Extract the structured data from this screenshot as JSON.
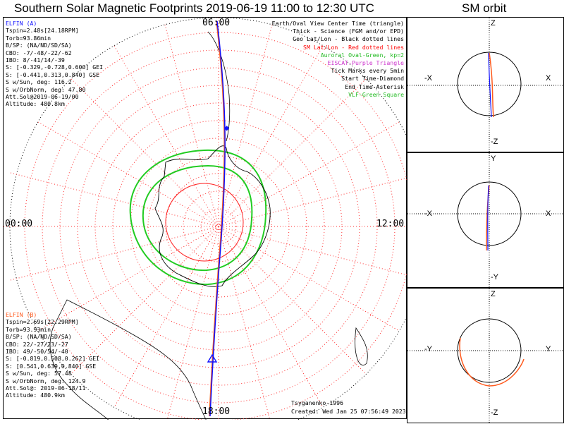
{
  "header": {
    "title": "Southern Solar Magnetic Footprints 2019-06-19 11:00 to 12:30 UTC",
    "orbit_title": "SM orbit"
  },
  "map": {
    "clock_labels": {
      "top": "06:00",
      "left": "00:00",
      "right": "12:00",
      "bottom": "18:00"
    },
    "colors": {
      "sm_grid": "#ff3030",
      "geo_grid": "#000000",
      "auroral_oval": "#22cc22",
      "track_a": "#1010ff",
      "track_b": "#ff5a1e"
    }
  },
  "elfin_a": {
    "title": "ELFIN (A)",
    "lines": [
      "Tspin=2.48s[24.18RPM]",
      "Torb=93.86min",
      "B/SP: (NA/ND/SD/SA)",
      "CBO: -7/-48/-22/-62",
      "IBO: 8/-41/14/-39",
      "S: [-0.329,-0.728,0.600] GEI",
      "S: [-0.441,0.313,0.840] GSE",
      "S w/Sun, deg: 116.2",
      "S w/OrbNorm, deg: 47.80",
      "Att.Sol@2019-06-19/00",
      "Altitude: 480.8km"
    ]
  },
  "elfin_b": {
    "title": "ELFIN (B)",
    "lines": [
      "Tspin=2.69s[22.29RPM]",
      "Torb=93.93min",
      "B/SP: (NA/ND/SD/SA)",
      "CBO: 22/-27/23/-27",
      "IBO: 49/-50/54/-40",
      "S: [-0.819,0.508,0.262] GEI",
      "S: [0.541,0.639,0.840] GSE",
      "S w/Sun, deg: 57.48",
      "S w/OrbNorm, deg: 124.9",
      "Att.Sol@: 2019-06-18/11",
      "Altitude: 480.9km"
    ]
  },
  "legend": [
    {
      "text": "Earth/Oval View Center Time (triangle)",
      "color": "#000000"
    },
    {
      "text": "Thick - Science (FGM and/or EPD)",
      "color": "#000000"
    },
    {
      "text": "Geo Lat/Lon - Black dotted lines",
      "color": "#000000"
    },
    {
      "text": "SM Lat/Lon - Red dotted lines",
      "color": "#ff0000"
    },
    {
      "text": "Auroral Oval-Green, kp=2",
      "color": "#22bb22"
    },
    {
      "text": "EISCAT-Purple Triangle",
      "color": "#cc33cc"
    },
    {
      "text": "Tick Marks every 5min",
      "color": "#000000"
    },
    {
      "text": "Start Time-Diamond",
      "color": "#000000"
    },
    {
      "text": "End Time-Asterisk",
      "color": "#000000"
    },
    {
      "text": "VLF-Green Square",
      "color": "#22bb22"
    }
  ],
  "credits": {
    "author": "Tsyganenko-1996",
    "created": "Created: Wed Jan 25 07:56:49 2023"
  },
  "orbit_panels": [
    {
      "top": "Z",
      "bottom": "-Z",
      "left": "-X",
      "right": "X"
    },
    {
      "top": "Y",
      "bottom": "-Y",
      "left": "-X",
      "right": "X"
    },
    {
      "top": "Z",
      "bottom": "-Z",
      "left": "-Y",
      "right": "Y"
    }
  ]
}
